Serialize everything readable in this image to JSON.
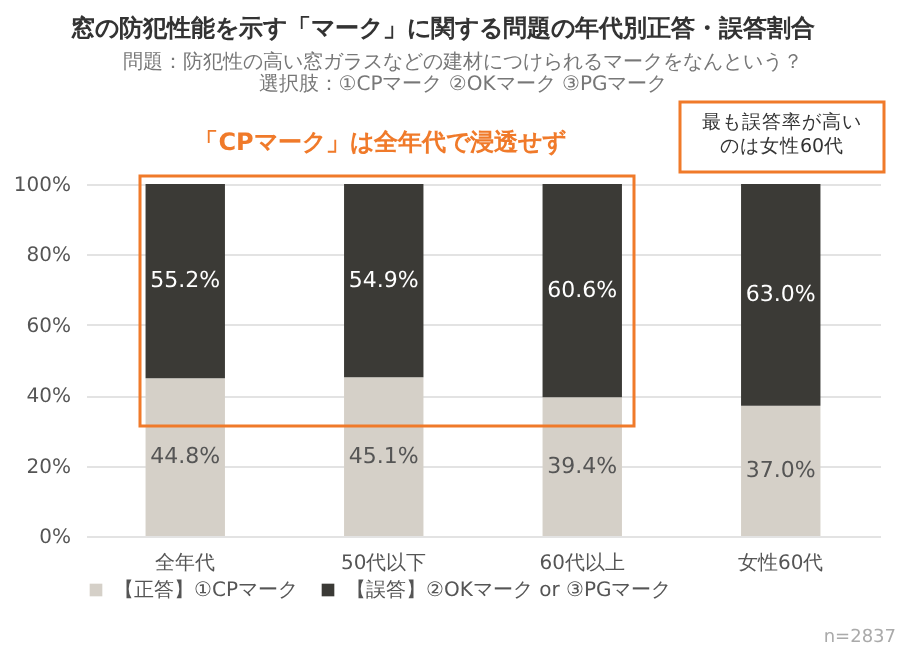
{
  "chart_data": {
    "type": "bar",
    "stacked": true,
    "title": "窓の防犯性能を示す「マーク」に関する問題の年代別正答・誤答割合",
    "subtitle": "問題：防犯性の高い窓ガラスなどの建材につけられるマークをなんという？",
    "categories": [
      "全年代",
      "50代以下",
      "60代以上",
      "女性60代"
    ],
    "series": [
      {
        "name": "【正答】①CPマーク",
        "color": "#d5d0c8",
        "values": [
          44.8,
          45.1,
          39.4,
          37.0
        ],
        "value_labels": [
          "44.8%",
          "45.1%",
          "39.4%",
          "37.0%"
        ]
      },
      {
        "name": "【誤答】②OKマーク or ③PGマーク",
        "color": "#3b3a36",
        "values": [
          55.2,
          54.9,
          60.6,
          63.0
        ],
        "value_labels": [
          "55.2%",
          "54.9%",
          "60.6%",
          "63.0%"
        ]
      }
    ],
    "ylim": [
      0,
      100
    ],
    "yticks": [
      {
        "value": 0,
        "label": "0%"
      },
      {
        "value": 20,
        "label": "20%"
      },
      {
        "value": 40,
        "label": "40%"
      },
      {
        "value": 60,
        "label": "60%"
      },
      {
        "value": 80,
        "label": "80%"
      },
      {
        "value": 100,
        "label": "100%"
      }
    ],
    "grid": "y",
    "legend": "bottom",
    "annotations": [
      "「CPマーク」は全年代で浸透せず",
      "最も誤答率が高いのは女性60代",
      "n=2837",
      "選択肢：①CPマーク ②OKマーク ③PGマーク"
    ]
  }
}
